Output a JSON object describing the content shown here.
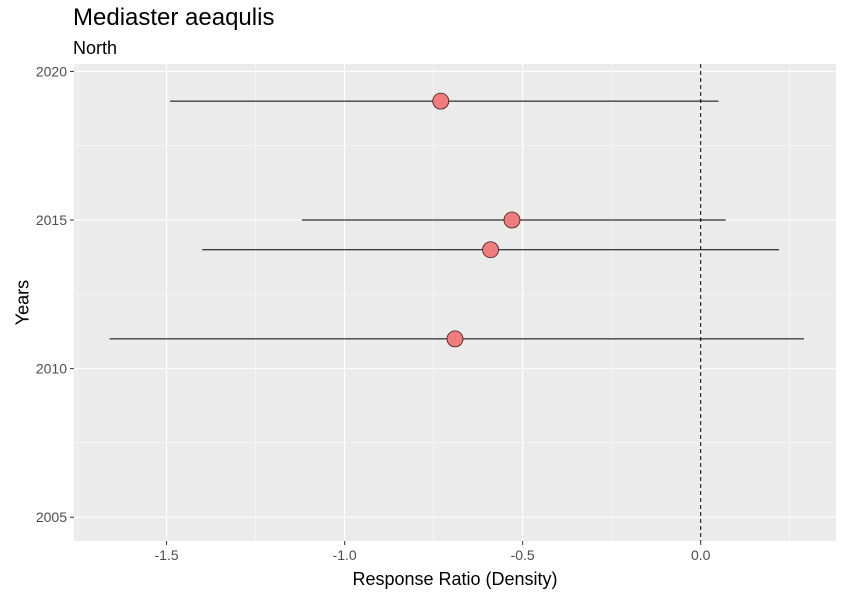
{
  "chart_data": {
    "type": "scatter",
    "title": "Mediaster aeaqulis",
    "subtitle": "North",
    "xlabel": "Response Ratio (Density)",
    "ylabel": "Years",
    "xlim": [
      -1.76,
      0.38
    ],
    "ylim": [
      2004.2,
      2020.25
    ],
    "x_ticks": [
      -1.5,
      -1.0,
      -0.5,
      0.0
    ],
    "x_tick_labels": [
      "-1.5",
      "-1.0",
      "-0.5",
      "0.0"
    ],
    "y_ticks": [
      2005,
      2010,
      2015,
      2020
    ],
    "y_tick_labels": [
      "2005",
      "2010",
      "2015",
      "2020"
    ],
    "reference_line_x": 0.0,
    "grid": true,
    "points": [
      {
        "year": 2019,
        "estimate": -0.73,
        "lower": -1.49,
        "upper": 0.05
      },
      {
        "year": 2015,
        "estimate": -0.53,
        "lower": -1.12,
        "upper": 0.07
      },
      {
        "year": 2014,
        "estimate": -0.59,
        "lower": -1.4,
        "upper": 0.22
      },
      {
        "year": 2011,
        "estimate": -0.69,
        "lower": -1.66,
        "upper": 0.29
      }
    ],
    "colors": {
      "panel_bg": "#ebebeb",
      "grid": "#ffffff",
      "point_fill": "#f07d7b",
      "point_stroke": "#3b1a1a",
      "error_bar": "#000000",
      "reference_line": "#000000"
    }
  }
}
